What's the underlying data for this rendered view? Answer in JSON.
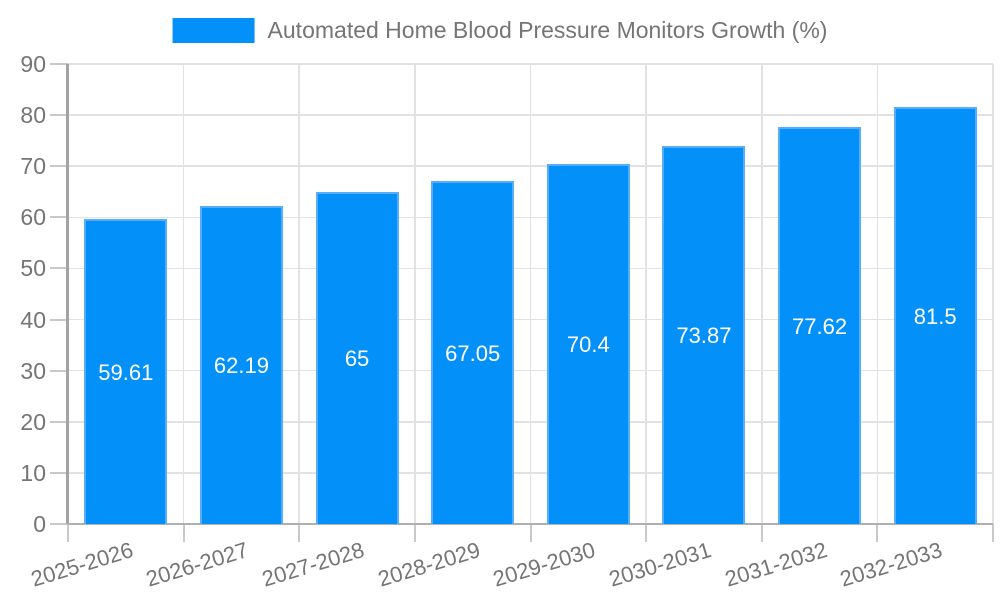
{
  "chart_data": {
    "type": "bar",
    "title": "Automated Home Blood Pressure Monitors Growth (%)",
    "categories": [
      "2025-2026",
      "2026-2027",
      "2027-2028",
      "2028-2029",
      "2029-2030",
      "2030-2031",
      "2031-2032",
      "2032-2033"
    ],
    "values": [
      59.61,
      62.19,
      65,
      67.05,
      70.4,
      73.87,
      77.62,
      81.5
    ],
    "value_labels": [
      "59.61",
      "62.19",
      "65",
      "67.05",
      "70.4",
      "73.87",
      "77.62",
      "81.5"
    ],
    "xlabel": "",
    "ylabel": "",
    "ylim": [
      0,
      90
    ],
    "ytick_step": 10,
    "yticks": [
      "0",
      "10",
      "20",
      "30",
      "40",
      "50",
      "60",
      "70",
      "80",
      "90"
    ],
    "grid": true,
    "legend_position": "top",
    "colors": {
      "bar_fill": "#0391f9",
      "bar_border": "#55adfb",
      "bar_label": "#ffffff",
      "axis_text": "#757575",
      "grid_line": "#e2e2e2",
      "axis_line": "#a3a3a3",
      "tick_mark": "#c9c9c9",
      "background": "#ffffff"
    }
  }
}
